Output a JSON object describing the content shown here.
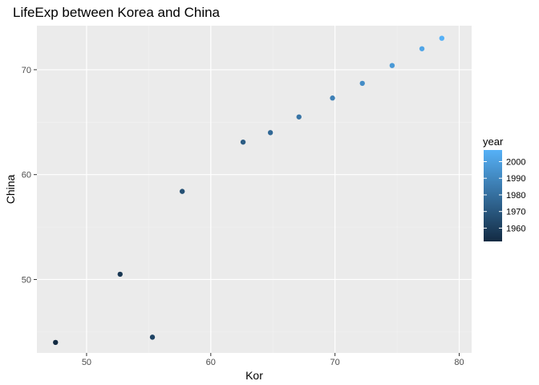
{
  "chart_data": {
    "type": "scatter",
    "title": "LifeExp between Korea and China",
    "xlabel": "Kor",
    "ylabel": "China",
    "xlim": [
      46,
      81
    ],
    "ylim": [
      43,
      74.2
    ],
    "x_ticks": [
      50,
      60,
      70,
      80
    ],
    "y_ticks": [
      50,
      60,
      70
    ],
    "grid": true,
    "legend": {
      "title": "year",
      "position": "right",
      "type": "colorbar",
      "range": [
        1952,
        2007
      ],
      "ticks": [
        1960,
        1970,
        1980,
        1990,
        2000
      ],
      "color_low": "#132b43",
      "color_high": "#56b1f7"
    },
    "points": [
      {
        "year": 1952,
        "x": 47.5,
        "y": 44.0
      },
      {
        "year": 1957,
        "x": 52.7,
        "y": 50.5
      },
      {
        "year": 1962,
        "x": 55.3,
        "y": 44.5
      },
      {
        "year": 1967,
        "x": 57.7,
        "y": 58.4
      },
      {
        "year": 1972,
        "x": 62.6,
        "y": 63.1
      },
      {
        "year": 1977,
        "x": 64.8,
        "y": 64.0
      },
      {
        "year": 1982,
        "x": 67.1,
        "y": 65.5
      },
      {
        "year": 1987,
        "x": 69.8,
        "y": 67.3
      },
      {
        "year": 1992,
        "x": 72.2,
        "y": 68.7
      },
      {
        "year": 1997,
        "x": 74.6,
        "y": 70.4
      },
      {
        "year": 2002,
        "x": 77.0,
        "y": 72.0
      },
      {
        "year": 2007,
        "x": 78.6,
        "y": 73.0
      }
    ]
  }
}
